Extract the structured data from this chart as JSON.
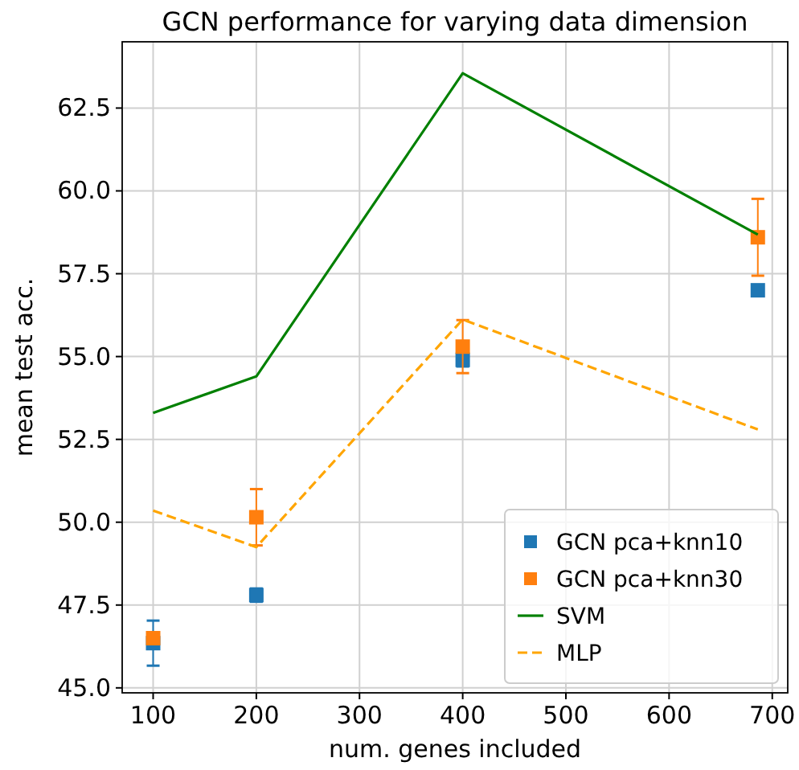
{
  "chart_data": {
    "type": "scatter",
    "title": "GCN performance for varying data dimension",
    "xlabel": "num. genes included",
    "ylabel": "mean test acc.",
    "x": [
      100,
      200,
      400,
      686
    ],
    "series": [
      {
        "name": "GCN pca+knn10",
        "color": "#1f77b4",
        "marker": "square",
        "values": [
          46.35,
          47.8,
          54.9,
          57.0
        ],
        "errors": [
          0.68,
          0.2,
          0.2,
          0.15
        ]
      },
      {
        "name": "GCN pca+knn30",
        "color": "#ff7f0e",
        "marker": "square",
        "values": [
          46.5,
          50.15,
          55.3,
          58.6
        ],
        "errors": [
          0.15,
          0.85,
          0.8,
          1.16
        ]
      },
      {
        "name": "SVM",
        "type": "line",
        "color": "#008000",
        "line_style": "solid",
        "values": [
          53.3,
          54.4,
          63.55,
          58.68
        ]
      },
      {
        "name": "MLP",
        "type": "line",
        "color": "#ffa500",
        "line_style": "dashed",
        "values": [
          50.35,
          49.25,
          56.12,
          52.8
        ]
      }
    ],
    "xlim": [
      70,
      715
    ],
    "ylim": [
      44.85,
      64.5
    ],
    "xticks": [
      100,
      200,
      300,
      400,
      500,
      600,
      700
    ],
    "yticks": [
      {
        "value": 45,
        "label": "45.0"
      },
      {
        "value": 47.5,
        "label": "47.5"
      },
      {
        "value": 50,
        "label": "50.0"
      },
      {
        "value": 52.5,
        "label": "52.5"
      },
      {
        "value": 55,
        "label": "55.0"
      },
      {
        "value": 57.5,
        "label": "57.5"
      },
      {
        "value": 60,
        "label": "60.0"
      },
      {
        "value": 62.5,
        "label": "62.5"
      }
    ],
    "grid": true,
    "legend": "bottom right"
  }
}
